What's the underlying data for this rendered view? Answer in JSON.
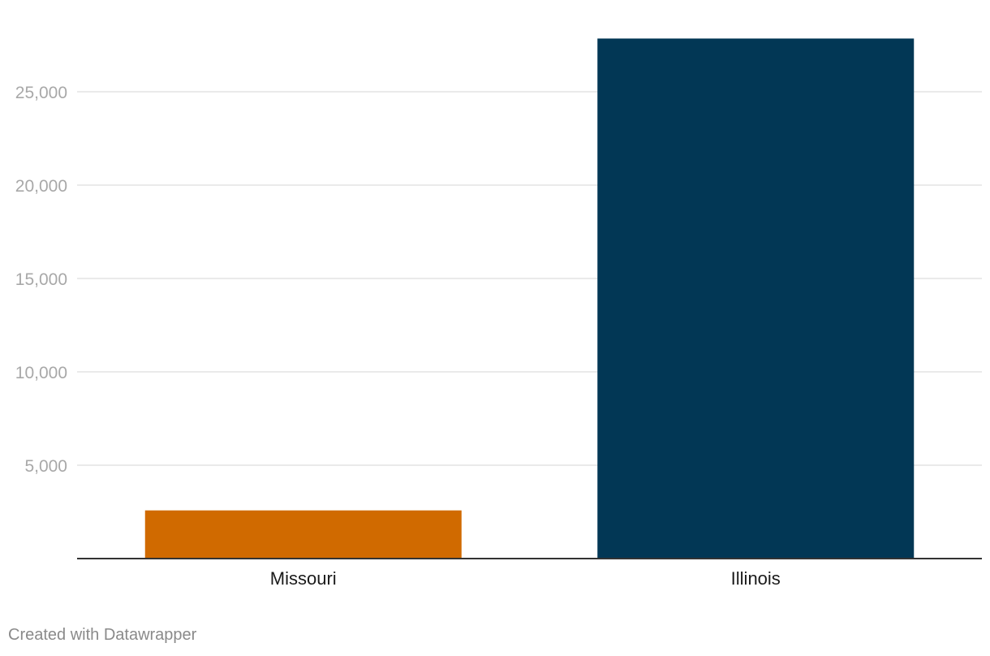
{
  "chart_data": {
    "type": "bar",
    "categories": [
      "Missouri",
      "Illinois"
    ],
    "values": [
      2580,
      27850
    ],
    "colors": [
      "#d06a00",
      "#023755"
    ],
    "ylim": [
      0,
      27850
    ],
    "yticks": [
      5000,
      10000,
      15000,
      20000,
      25000
    ],
    "ytick_labels": [
      "5,000",
      "10,000",
      "15,000",
      "20,000",
      "25,000"
    ],
    "grid": true,
    "title": "",
    "xlabel": "",
    "ylabel": ""
  },
  "footer": {
    "credit": "Created with Datawrapper"
  }
}
